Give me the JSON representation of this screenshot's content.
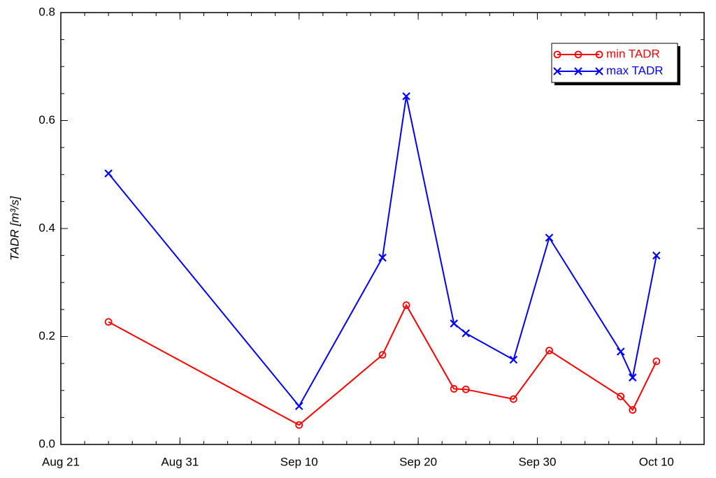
{
  "chart_data": {
    "type": "line",
    "ylabel": "TADR [m³/s]",
    "x": [
      "Aug 25",
      "Sep 10",
      "Sep 17",
      "Sep 19",
      "Sep 23",
      "Sep 24",
      "Sep 28",
      "Oct 1",
      "Oct 7",
      "Oct 8",
      "Oct 10"
    ],
    "series": [
      {
        "name": "min TADR",
        "color": "#ff0000",
        "marker": "circle",
        "values": [
          0.227,
          0.036,
          0.166,
          0.258,
          0.103,
          0.102,
          0.084,
          0.174,
          0.089,
          0.064,
          0.154
        ]
      },
      {
        "name": "max TADR",
        "color": "#0000ff",
        "marker": "x",
        "values": [
          0.502,
          0.071,
          0.346,
          0.645,
          0.224,
          0.206,
          0.157,
          0.383,
          0.172,
          0.124,
          0.35
        ]
      }
    ],
    "xlim": [
      "Aug 21",
      "Oct 14"
    ],
    "xticks": [
      "Aug 21",
      "Aug 31",
      "Sep 10",
      "Sep 20",
      "Sep 30",
      "Oct 10"
    ],
    "ylim": [
      0,
      0.8
    ],
    "yticks": [
      {
        "value": 0,
        "label": "0.0"
      },
      0.2,
      0.4,
      0.6,
      {
        "value": 0.8,
        "label": "0.8"
      }
    ],
    "legend": "upper right"
  }
}
